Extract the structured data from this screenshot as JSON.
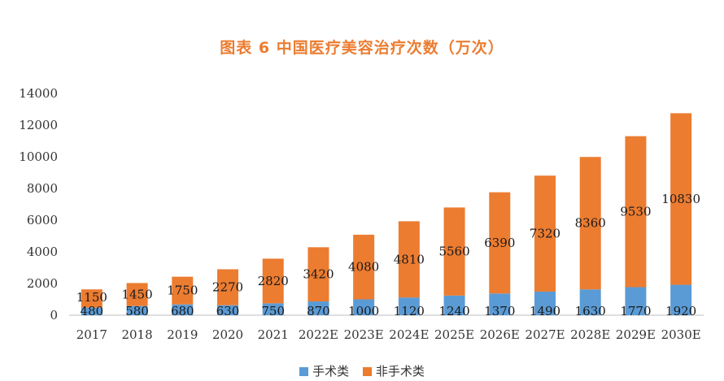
{
  "chart_data": {
    "type": "bar",
    "stacked": true,
    "title": "图表 6 中国医疗美容治疗次数（万次）",
    "categories": [
      "2017",
      "2018",
      "2019",
      "2020",
      "2021",
      "2022E",
      "2023E",
      "2024E",
      "2025E",
      "2026E",
      "2027E",
      "2028E",
      "2029E",
      "2030E"
    ],
    "series": [
      {
        "name": "手术类",
        "color": "#5b9bd5",
        "values": [
          480,
          580,
          680,
          630,
          750,
          870,
          1000,
          1120,
          1240,
          1370,
          1490,
          1630,
          1770,
          1920
        ]
      },
      {
        "name": "非手术类",
        "color": "#ec7c30",
        "values": [
          1150,
          1450,
          1750,
          2270,
          2820,
          3420,
          4080,
          4810,
          5560,
          6390,
          7320,
          8360,
          9530,
          10830
        ]
      }
    ],
    "yticks": [
      "0",
      "2000",
      "4000",
      "6000",
      "8000",
      "10000",
      "12000",
      "14000"
    ],
    "ylim": [
      0,
      14000
    ],
    "legend_position": "bottom"
  }
}
